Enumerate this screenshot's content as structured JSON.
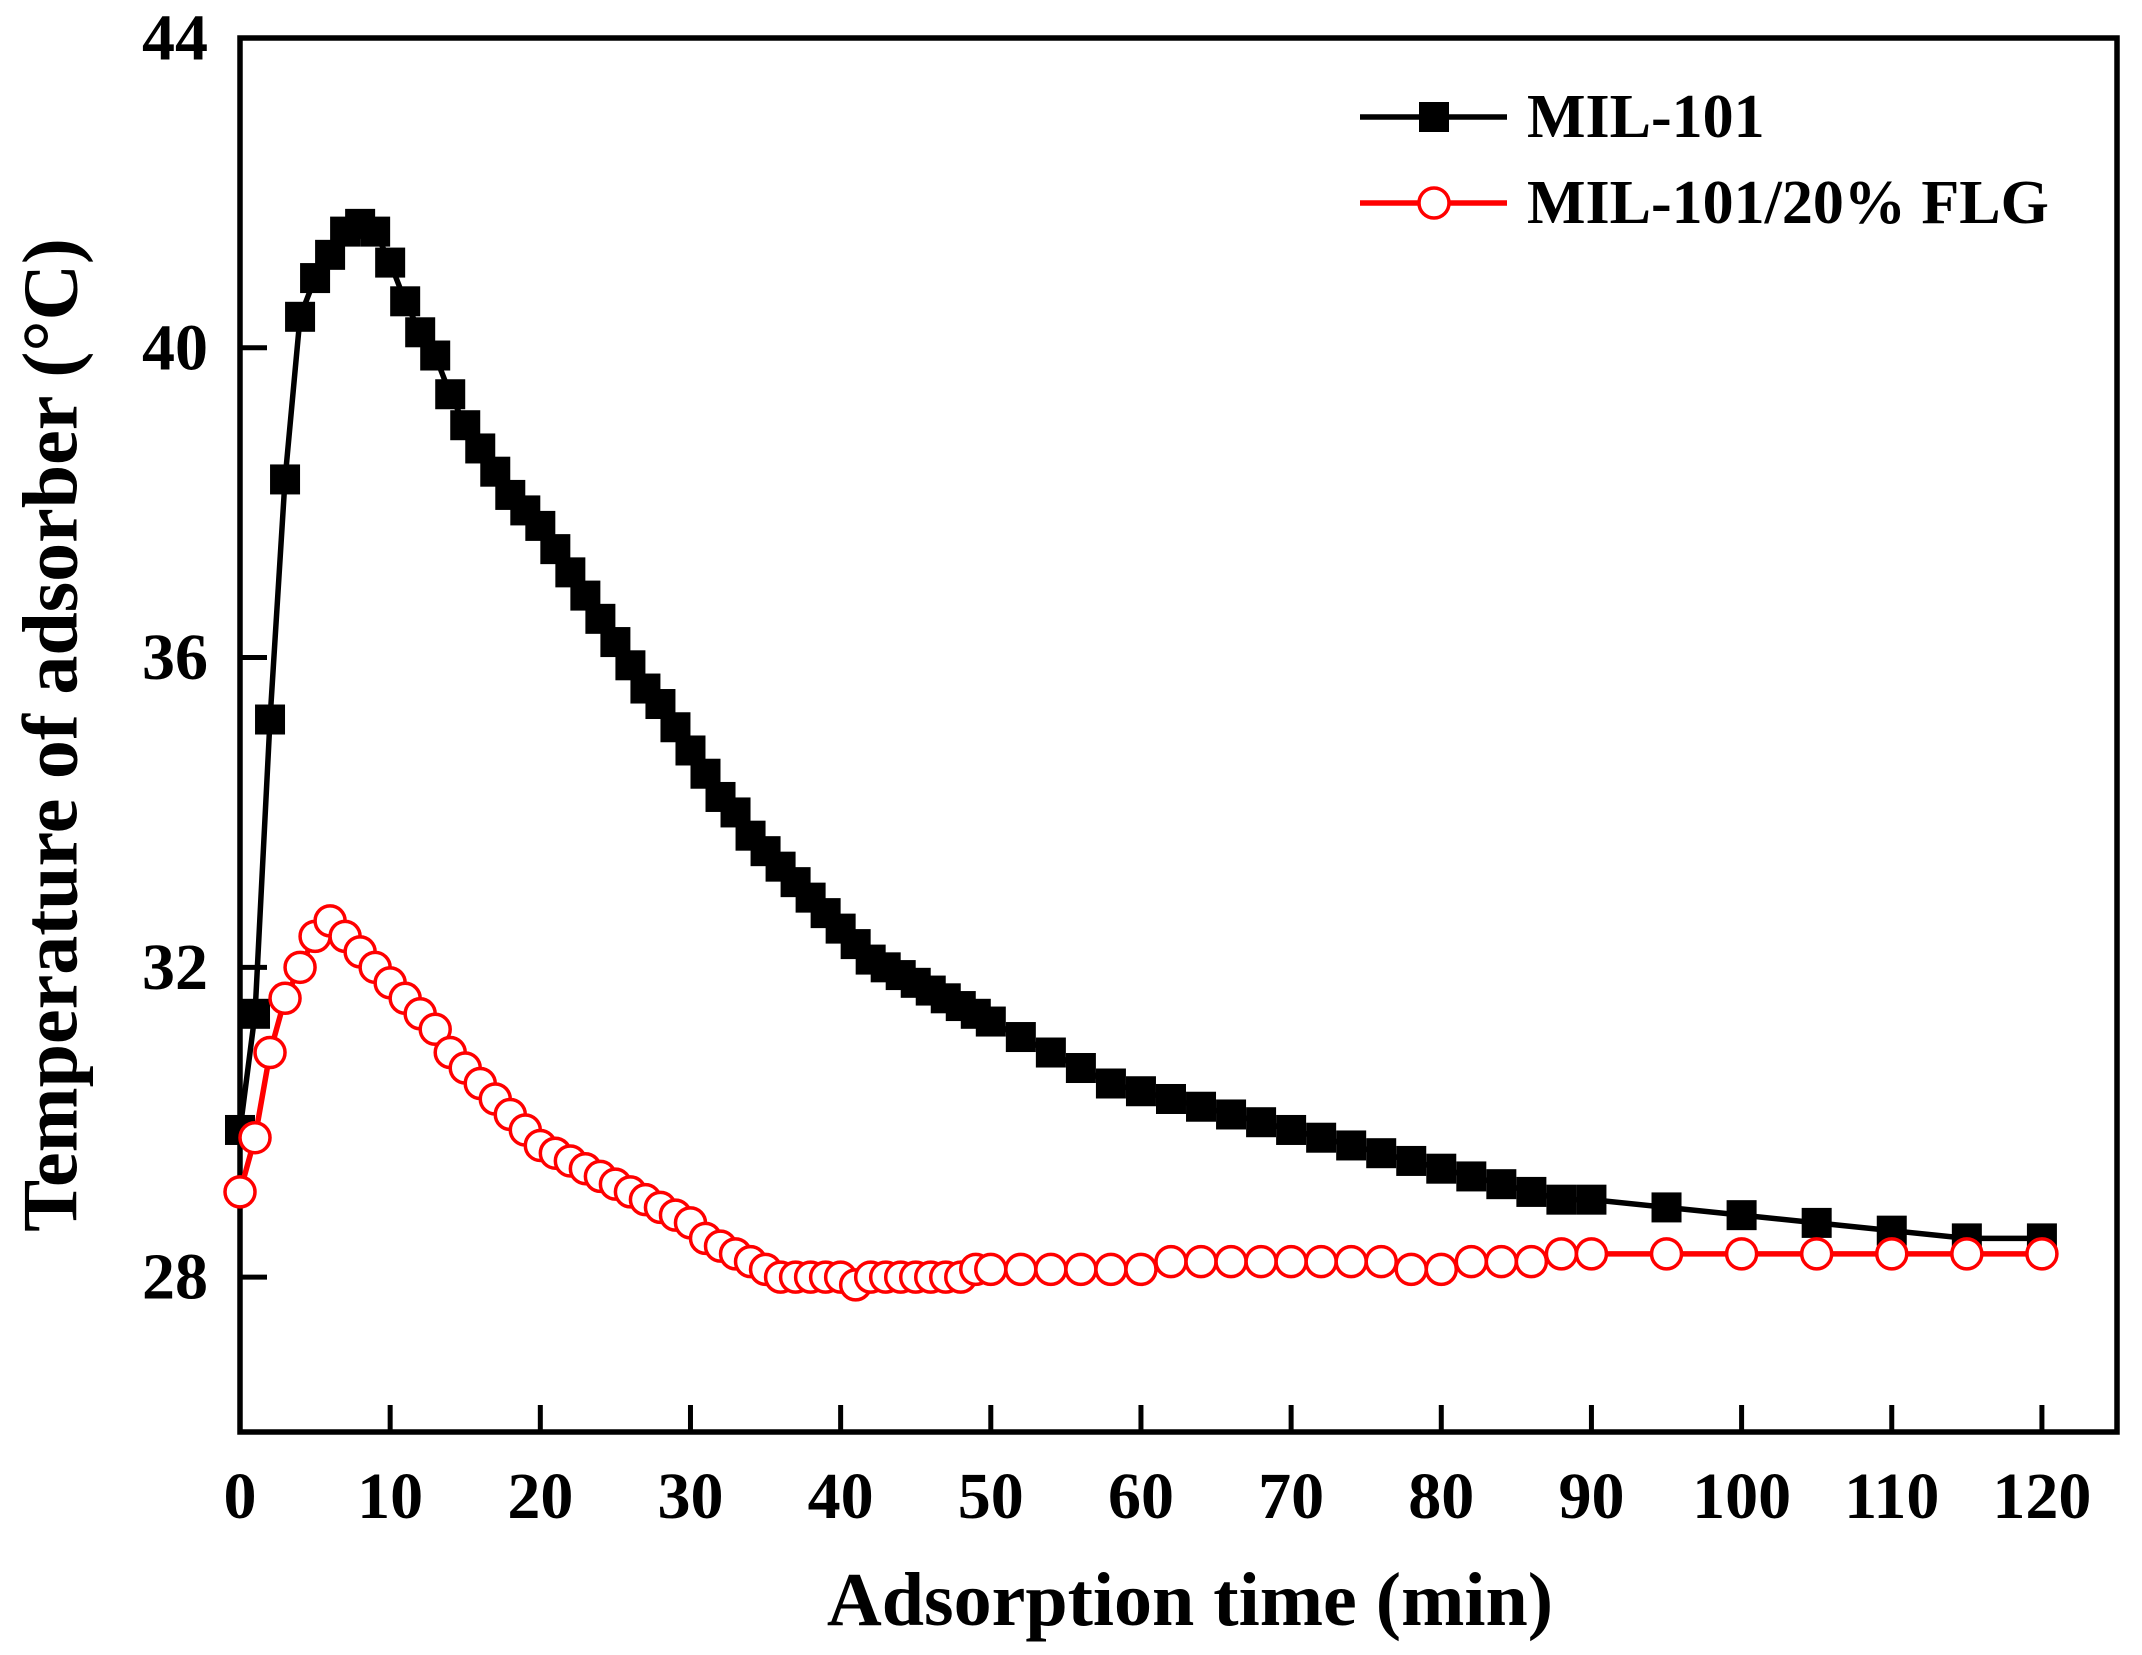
{
  "chart_data": {
    "type": "line",
    "title": "",
    "xlabel": "Adsorption time (min)",
    "ylabel": "Temperature of adsorber (°C)",
    "xlim": [
      0,
      125
    ],
    "ylim": [
      26,
      44
    ],
    "xticks": [
      0,
      10,
      20,
      30,
      40,
      50,
      60,
      70,
      80,
      90,
      100,
      110,
      120
    ],
    "yticks": [
      28,
      32,
      36,
      40,
      44
    ],
    "grid": false,
    "legend": "top-right",
    "x": [
      0,
      1,
      2,
      3,
      4,
      5,
      6,
      7,
      8,
      9,
      10,
      11,
      12,
      13,
      14,
      15,
      16,
      17,
      18,
      19,
      20,
      21,
      22,
      23,
      24,
      25,
      26,
      27,
      28,
      29,
      30,
      31,
      32,
      33,
      34,
      35,
      36,
      37,
      38,
      39,
      40,
      41,
      42,
      43,
      44,
      45,
      46,
      47,
      48,
      49,
      50,
      52,
      54,
      56,
      58,
      60,
      62,
      64,
      66,
      68,
      70,
      72,
      74,
      76,
      78,
      80,
      82,
      84,
      86,
      88,
      90,
      95,
      100,
      105,
      110,
      115,
      120
    ],
    "series": [
      {
        "name": "MIL-101",
        "color": "#000000",
        "marker": "filled-square",
        "values": [
          29.9,
          31.4,
          35.2,
          38.3,
          40.4,
          40.9,
          41.2,
          41.5,
          41.6,
          41.5,
          41.1,
          40.6,
          40.2,
          39.9,
          39.4,
          39.0,
          38.7,
          38.4,
          38.1,
          37.9,
          37.7,
          37.4,
          37.1,
          36.8,
          36.5,
          36.2,
          35.9,
          35.6,
          35.4,
          35.1,
          34.8,
          34.5,
          34.2,
          34.0,
          33.7,
          33.5,
          33.3,
          33.1,
          32.9,
          32.7,
          32.5,
          32.3,
          32.1,
          32.0,
          31.9,
          31.8,
          31.7,
          31.6,
          31.5,
          31.4,
          31.3,
          31.1,
          30.9,
          30.7,
          30.5,
          30.4,
          30.3,
          30.2,
          30.1,
          30.0,
          29.9,
          29.8,
          29.7,
          29.6,
          29.5,
          29.4,
          29.3,
          29.2,
          29.1,
          29.0,
          29.0,
          28.9,
          28.8,
          28.7,
          28.6,
          28.5,
          28.5
        ]
      },
      {
        "name": "MIL-101/20% FLG",
        "color": "#ff0000",
        "marker": "open-circle",
        "values": [
          29.1,
          29.8,
          30.9,
          31.6,
          32.0,
          32.4,
          32.6,
          32.4,
          32.2,
          32.0,
          31.8,
          31.6,
          31.4,
          31.2,
          30.9,
          30.7,
          30.5,
          30.3,
          30.1,
          29.9,
          29.7,
          29.6,
          29.5,
          29.4,
          29.3,
          29.2,
          29.1,
          29.0,
          28.9,
          28.8,
          28.7,
          28.5,
          28.4,
          28.3,
          28.2,
          28.1,
          28.0,
          28.0,
          28.0,
          28.0,
          28.0,
          27.9,
          28.0,
          28.0,
          28.0,
          28.0,
          28.0,
          28.0,
          28.0,
          28.1,
          28.1,
          28.1,
          28.1,
          28.1,
          28.1,
          28.1,
          28.2,
          28.2,
          28.2,
          28.2,
          28.2,
          28.2,
          28.2,
          28.2,
          28.1,
          28.1,
          28.2,
          28.2,
          28.2,
          28.3,
          28.3,
          28.3,
          28.3,
          28.3,
          28.3,
          28.3,
          28.3
        ]
      }
    ]
  }
}
